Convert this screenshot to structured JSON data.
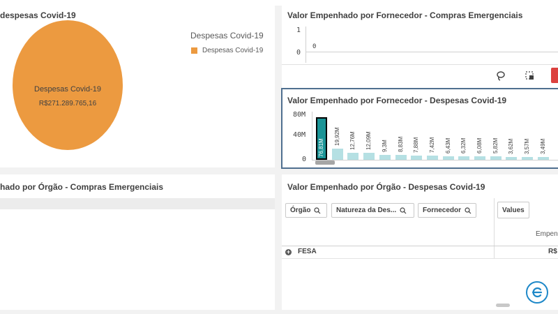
{
  "top_panels": {
    "left_title": "despesas Covid-19",
    "right_title": "Valor Empenhado por Fornecedor - Compras Emergenciais"
  },
  "pie": {
    "legend_title": "Despesas Covid-19",
    "legend_item": "Despesas Covid-19",
    "slice_label": "Despesas Covid-19",
    "slice_value": "R$271.289.765,16",
    "color": "#ec9a40"
  },
  "compras_mini": {
    "y_tick_top": "1",
    "y_tick_bottom": "0",
    "value": "0"
  },
  "toolbar": {
    "lasso_icon": "lasso-icon",
    "select_icon": "select-area-icon"
  },
  "bar_panel": {
    "title": "Valor Empenhado por Fornecedor - Despesas Covid-19"
  },
  "chart_data": {
    "type": "bar",
    "title": "Valor Empenhado por Fornecedor - Despesas Covid-19",
    "y_ticks": [
      "80M",
      "40M",
      "0"
    ],
    "ylim": [
      0,
      80
    ],
    "values": [
      76.81,
      19.92,
      12.76,
      12.09,
      9.3,
      8.83,
      7.88,
      7.42,
      6.43,
      6.32,
      6.08,
      5.82,
      3.62,
      3.57,
      3.49
    ],
    "labels": [
      "76,81M",
      "19,92M",
      "12,76M",
      "12,09M",
      "9,3M",
      "8,83M",
      "7,88M",
      "7,42M",
      "6,43M",
      "6,32M",
      "6,08M",
      "5,82M",
      "3,62M",
      "3,57M",
      "3,49M"
    ],
    "selected_index": 0,
    "bar_color": "#b5e0e3",
    "selected_color": "#1a9496"
  },
  "bottom_left": {
    "title": "hado por Órgão - Compras Emergenciais"
  },
  "table_panel": {
    "title": "Valor Empenhado por Órgão - Despesas Covid-19",
    "filters": [
      "Órgão",
      "Natureza da Des...",
      "Fornecedor"
    ],
    "values_btn": "Values",
    "col_header": "Empen",
    "row_label": "FESA",
    "row_value": "R$"
  }
}
